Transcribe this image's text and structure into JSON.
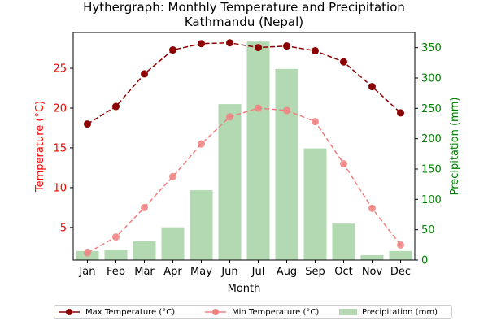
{
  "chart_data": {
    "type": "bar+line",
    "title": "Hythergraph: Monthly Temperature and Precipitation",
    "subtitle": "Kathmandu (Nepal)",
    "xlabel": "Month",
    "ylabel_left": "Temperature (°C)",
    "ylabel_right": "Precipitation (mm)",
    "categories": [
      "Jan",
      "Feb",
      "Mar",
      "Apr",
      "May",
      "Jun",
      "Jul",
      "Aug",
      "Sep",
      "Oct",
      "Nov",
      "Dec"
    ],
    "ylim_left": [
      0.9,
      29.5
    ],
    "ylim_right": [
      0,
      375
    ],
    "yticks_left": [
      5,
      10,
      15,
      20,
      25
    ],
    "yticks_right": [
      0,
      50,
      100,
      150,
      200,
      250,
      300,
      350
    ],
    "grid": false,
    "legend_position": "bottom",
    "series": [
      {
        "name": "Max Temperature (°C)",
        "kind": "line",
        "axis": "left",
        "color": "#8b0000",
        "values": [
          18.0,
          20.2,
          24.3,
          27.3,
          28.1,
          28.2,
          27.6,
          27.8,
          27.2,
          25.8,
          22.7,
          19.4
        ]
      },
      {
        "name": "Min Temperature (°C)",
        "kind": "line",
        "axis": "left",
        "color": "#f08080",
        "values": [
          1.8,
          3.8,
          7.5,
          11.4,
          15.5,
          18.9,
          20.0,
          19.7,
          18.3,
          13.0,
          7.4,
          2.8
        ]
      },
      {
        "name": "Precipitation (mm)",
        "kind": "bar",
        "axis": "right",
        "color": "#b2d9b2",
        "values": [
          15,
          16,
          31,
          54,
          115,
          257,
          360,
          315,
          184,
          60,
          8,
          15
        ]
      }
    ],
    "colors": {
      "left_axis": "#ff0000",
      "right_axis": "#008000"
    }
  }
}
